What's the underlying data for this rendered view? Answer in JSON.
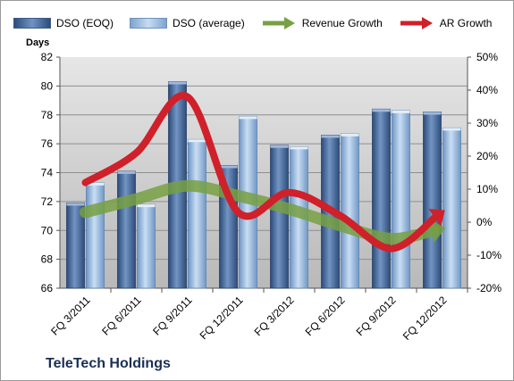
{
  "company_name": "TeleTech Holdings",
  "colors": {
    "dso_eoq": "#4f6f9f",
    "dso_avg": "#9bbde3",
    "revenue_growth": "#77a043",
    "ar_growth": "#d0202a",
    "plot_background_top": "#e6e6e6",
    "plot_background_bottom": "#b9b9b9"
  },
  "legend": [
    {
      "label": "DSO (EOQ)",
      "kind": "bar",
      "key": "dso_eoq"
    },
    {
      "label": "DSO (average)",
      "kind": "bar",
      "key": "dso_avg"
    },
    {
      "label": "Revenue Growth",
      "kind": "arrow",
      "key": "revenue_growth"
    },
    {
      "label": "AR Growth",
      "kind": "arrow",
      "key": "ar_growth"
    }
  ],
  "chart_data": {
    "type": "bar",
    "categories": [
      "FQ 3/2011",
      "FQ 6/2011",
      "FQ 9/2011",
      "FQ 12/2011",
      "FQ 3/2012",
      "FQ 6/2012",
      "FQ 9/2012",
      "FQ 12/2012"
    ],
    "ylabel": "Days",
    "ylim": [
      66,
      82
    ],
    "yticks": [
      66,
      68,
      70,
      72,
      74,
      76,
      78,
      80,
      82
    ],
    "y2lim": [
      -0.2,
      0.5
    ],
    "y2ticks": [
      "-20%",
      "-10%",
      "0%",
      "10%",
      "20%",
      "30%",
      "40%",
      "50%"
    ],
    "grid": true,
    "legend_position": "top",
    "series": [
      {
        "name": "DSO (EOQ)",
        "type": "bar",
        "axis": "left",
        "values": [
          71.9,
          74.1,
          80.3,
          74.5,
          75.9,
          76.6,
          78.4,
          78.2
        ]
      },
      {
        "name": "DSO (average)",
        "type": "bar",
        "axis": "left",
        "values": [
          73.3,
          71.8,
          76.3,
          77.9,
          75.8,
          76.7,
          78.3,
          77.1
        ]
      },
      {
        "name": "Revenue Growth",
        "type": "line",
        "axis": "right",
        "values": [
          0.03,
          0.07,
          0.11,
          0.08,
          0.04,
          -0.01,
          -0.05,
          -0.02
        ]
      },
      {
        "name": "AR Growth",
        "type": "line",
        "axis": "right",
        "values": [
          0.12,
          0.21,
          0.38,
          0.03,
          0.09,
          0.02,
          -0.08,
          0.03
        ]
      }
    ]
  }
}
